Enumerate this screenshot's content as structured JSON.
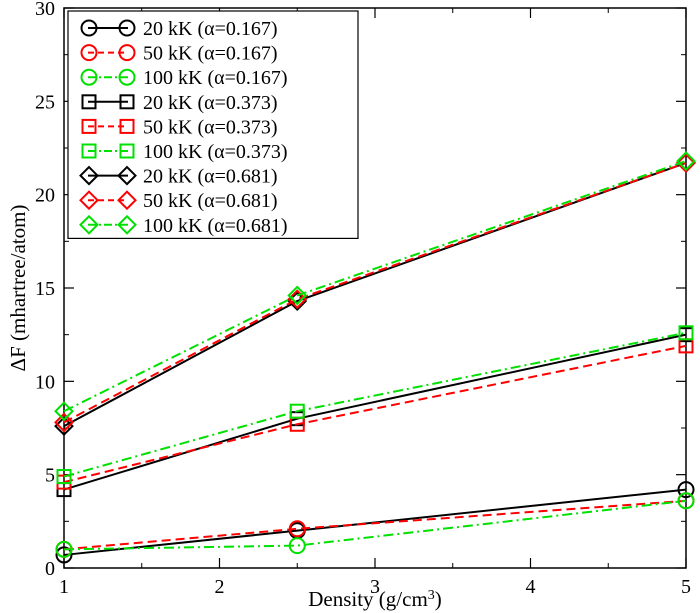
{
  "chart_data": {
    "type": "line",
    "xlabel": "Density (g/cm",
    "xlabel_superscript": "3",
    "xlabel_suffix": ")",
    "ylabel": "ΔF (mhartree/atom)",
    "xlim": [
      1,
      5
    ],
    "ylim": [
      0,
      30
    ],
    "x_ticks": [
      1,
      2,
      3,
      4,
      5
    ],
    "y_ticks": [
      0,
      5,
      10,
      15,
      20,
      25,
      30
    ],
    "x_tick_labels": [
      "1",
      "2",
      "3",
      "4",
      "5"
    ],
    "y_tick_labels": [
      "0",
      "5",
      "10",
      "15",
      "20",
      "25",
      "30"
    ],
    "grid": false,
    "legend_position": "top-left",
    "x": [
      1,
      2.5,
      5
    ],
    "series": [
      {
        "name": "20 kK (α=0.167)",
        "values": [
          0.7,
          2.0,
          4.2
        ],
        "color": "#000000",
        "marker": "circle",
        "dash": "solid"
      },
      {
        "name": "50 kK (α=0.167)",
        "values": [
          1.0,
          2.1,
          3.6
        ],
        "color": "#ff0000",
        "marker": "circle",
        "dash": "dashed"
      },
      {
        "name": "100 kK (α=0.167)",
        "values": [
          1.0,
          1.2,
          3.6
        ],
        "color": "#00e000",
        "marker": "circle",
        "dash": "dashdot"
      },
      {
        "name": "20 kK (α=0.373)",
        "values": [
          4.2,
          8.0,
          12.5
        ],
        "color": "#000000",
        "marker": "square",
        "dash": "solid"
      },
      {
        "name": "50 kK (α=0.373)",
        "values": [
          4.6,
          7.7,
          11.9
        ],
        "color": "#ff0000",
        "marker": "square",
        "dash": "dashed"
      },
      {
        "name": "100 kK (α=0.373)",
        "values": [
          4.9,
          8.4,
          12.6
        ],
        "color": "#00e000",
        "marker": "square",
        "dash": "dashdot"
      },
      {
        "name": "20 kK (α=0.681)",
        "values": [
          7.6,
          14.3,
          21.7
        ],
        "color": "#000000",
        "marker": "diamond",
        "dash": "solid"
      },
      {
        "name": "50 kK (α=0.681)",
        "values": [
          7.8,
          14.4,
          21.7
        ],
        "color": "#ff0000",
        "marker": "diamond",
        "dash": "dashed"
      },
      {
        "name": "100 kK (α=0.681)",
        "values": [
          8.4,
          14.6,
          21.8
        ],
        "color": "#00e000",
        "marker": "diamond",
        "dash": "dashdot"
      }
    ]
  }
}
